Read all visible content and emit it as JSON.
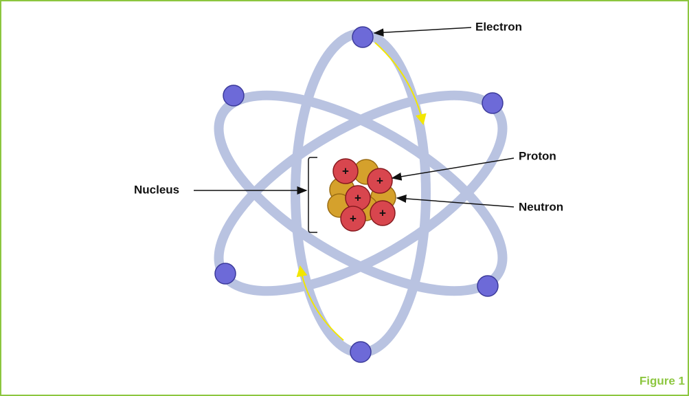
{
  "labels": {
    "electron": "Electron",
    "proton": "Proton",
    "neutron": "Neutron",
    "nucleus": "Nucleus"
  },
  "proton_symbol": "+",
  "caption": "Figure 1"
}
